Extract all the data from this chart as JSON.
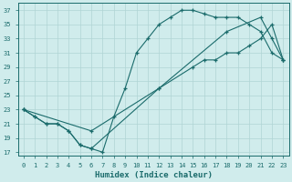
{
  "xlabel": "Humidex (Indice chaleur)",
  "background_color": "#d0ecec",
  "line_color": "#1a6b6b",
  "grid_color": "#b0d4d4",
  "xlim": [
    -0.5,
    23.5
  ],
  "ylim": [
    16.5,
    38
  ],
  "xticks": [
    0,
    1,
    2,
    3,
    4,
    5,
    6,
    7,
    8,
    9,
    10,
    11,
    12,
    13,
    14,
    15,
    16,
    17,
    18,
    19,
    20,
    21,
    22,
    23
  ],
  "yticks": [
    17,
    19,
    21,
    23,
    25,
    27,
    29,
    31,
    33,
    35,
    37
  ],
  "line1_x": [
    0,
    1,
    2,
    3,
    4,
    5,
    6,
    7,
    8,
    9,
    10,
    11,
    12,
    13,
    14,
    15,
    16,
    17,
    18,
    19,
    20,
    21,
    22,
    23
  ],
  "line1_y": [
    23,
    22,
    21,
    21,
    20,
    18,
    17.5,
    17,
    22,
    26,
    31,
    33,
    35,
    36,
    37,
    37,
    36.5,
    36,
    36,
    36,
    35,
    34,
    31,
    30
  ],
  "line2_x": [
    0,
    6,
    12,
    18,
    21,
    22,
    23
  ],
  "line2_y": [
    23,
    20,
    26,
    34,
    36,
    33,
    30
  ],
  "line3_x": [
    0,
    1,
    2,
    3,
    4,
    5,
    6,
    12,
    15,
    16,
    17,
    18,
    19,
    20,
    21,
    22,
    23
  ],
  "line3_y": [
    23,
    22,
    21,
    21,
    20,
    18,
    17.5,
    26,
    29,
    30,
    30,
    31,
    31,
    32,
    33,
    35,
    30
  ]
}
